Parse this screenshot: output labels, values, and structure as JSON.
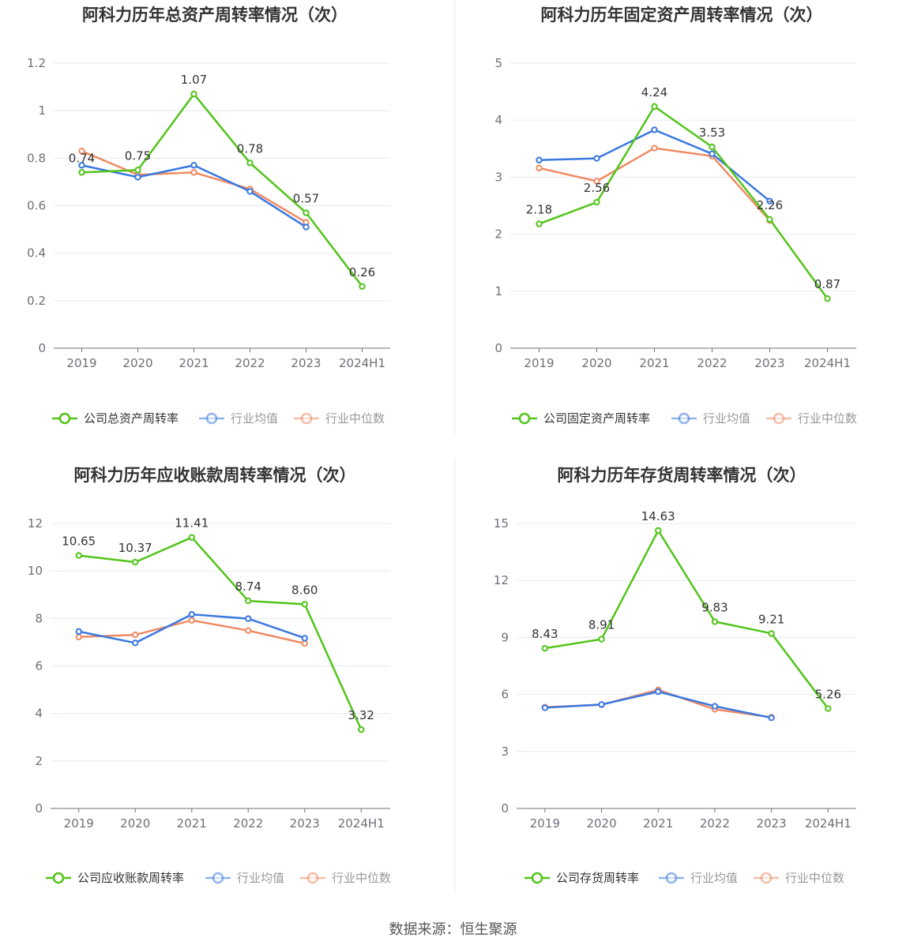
{
  "source_label": "数据来源：恒生聚源",
  "colors": {
    "company": "#52c41a",
    "industry_avg": "#3a78e0",
    "industry_median": "#f08a63",
    "axis": "#6e7079",
    "grid": "#e6e9f0",
    "divider": "#e8e8e8"
  },
  "chart_data": [
    {
      "type": "line",
      "title": "阿科力历年总资产周转率情况（次）",
      "categories": [
        "2019",
        "2020",
        "2021",
        "2022",
        "2023",
        "2024H1"
      ],
      "yticks": [
        "0",
        "0.2",
        "0.4",
        "0.6",
        "0.8",
        "1",
        "1.2"
      ],
      "ylim": [
        0,
        1.2
      ],
      "grid": true,
      "legend_position": "bottom",
      "series": [
        {
          "name": "公司总资产周转率",
          "values": [
            0.74,
            0.75,
            1.07,
            0.78,
            0.57,
            0.26
          ],
          "labels": [
            "0.74",
            "0.75",
            "1.07",
            "0.78",
            "0.57",
            "0.26"
          ]
        },
        {
          "name": "行业均值",
          "values": [
            0.77,
            0.72,
            0.77,
            0.66,
            0.51,
            null
          ]
        },
        {
          "name": "行业中位数",
          "values": [
            0.83,
            0.73,
            0.74,
            0.67,
            0.53,
            null
          ]
        }
      ]
    },
    {
      "type": "line",
      "title": "阿科力历年固定资产周转率情况（次）",
      "categories": [
        "2019",
        "2020",
        "2021",
        "2022",
        "2023",
        "2024H1"
      ],
      "yticks": [
        "0",
        "1",
        "2",
        "3",
        "4",
        "5"
      ],
      "ylim": [
        0,
        5
      ],
      "grid": true,
      "legend_position": "bottom",
      "series": [
        {
          "name": "公司固定资产周转率",
          "values": [
            2.18,
            2.56,
            4.24,
            3.53,
            2.26,
            0.87
          ],
          "labels": [
            "2.18",
            "2.56",
            "4.24",
            "3.53",
            "2.26",
            "0.87"
          ]
        },
        {
          "name": "行业均值",
          "values": [
            3.3,
            3.33,
            3.83,
            3.41,
            2.58,
            null
          ]
        },
        {
          "name": "行业中位数",
          "values": [
            3.16,
            2.93,
            3.51,
            3.37,
            2.24,
            null
          ]
        }
      ]
    },
    {
      "type": "line",
      "title": "阿科力历年应收账款周转率情况（次）",
      "categories": [
        "2019",
        "2020",
        "2021",
        "2022",
        "2023",
        "2024H1"
      ],
      "yticks": [
        "0",
        "2",
        "4",
        "6",
        "8",
        "10",
        "12"
      ],
      "ylim": [
        0,
        12
      ],
      "grid": true,
      "legend_position": "bottom",
      "series": [
        {
          "name": "公司应收账款周转率",
          "values": [
            10.65,
            10.37,
            11.41,
            8.74,
            8.6,
            3.32
          ],
          "labels": [
            "10.65",
            "10.37",
            "11.41",
            "8.74",
            "8.60",
            "3.32"
          ]
        },
        {
          "name": "行业均值",
          "values": [
            7.45,
            6.97,
            8.17,
            7.99,
            7.17,
            null
          ]
        },
        {
          "name": "行业中位数",
          "values": [
            7.22,
            7.31,
            7.92,
            7.49,
            6.95,
            null
          ]
        }
      ]
    },
    {
      "type": "line",
      "title": "阿科力历年存货周转率情况（次）",
      "categories": [
        "2019",
        "2020",
        "2021",
        "2022",
        "2023",
        "2024H1"
      ],
      "yticks": [
        "0",
        "3",
        "6",
        "9",
        "12",
        "15"
      ],
      "ylim": [
        0,
        15
      ],
      "grid": true,
      "legend_position": "bottom",
      "series": [
        {
          "name": "公司存货周转率",
          "values": [
            8.43,
            8.91,
            14.63,
            9.83,
            9.21,
            5.26
          ],
          "labels": [
            "8.43",
            "8.91",
            "14.63",
            "9.83",
            "9.21",
            "5.26"
          ]
        },
        {
          "name": "行业均值",
          "values": [
            5.3,
            5.47,
            6.15,
            5.38,
            4.77,
            null
          ]
        },
        {
          "name": "行业中位数",
          "values": [
            5.33,
            5.46,
            6.24,
            5.22,
            4.8,
            null
          ]
        }
      ]
    }
  ]
}
